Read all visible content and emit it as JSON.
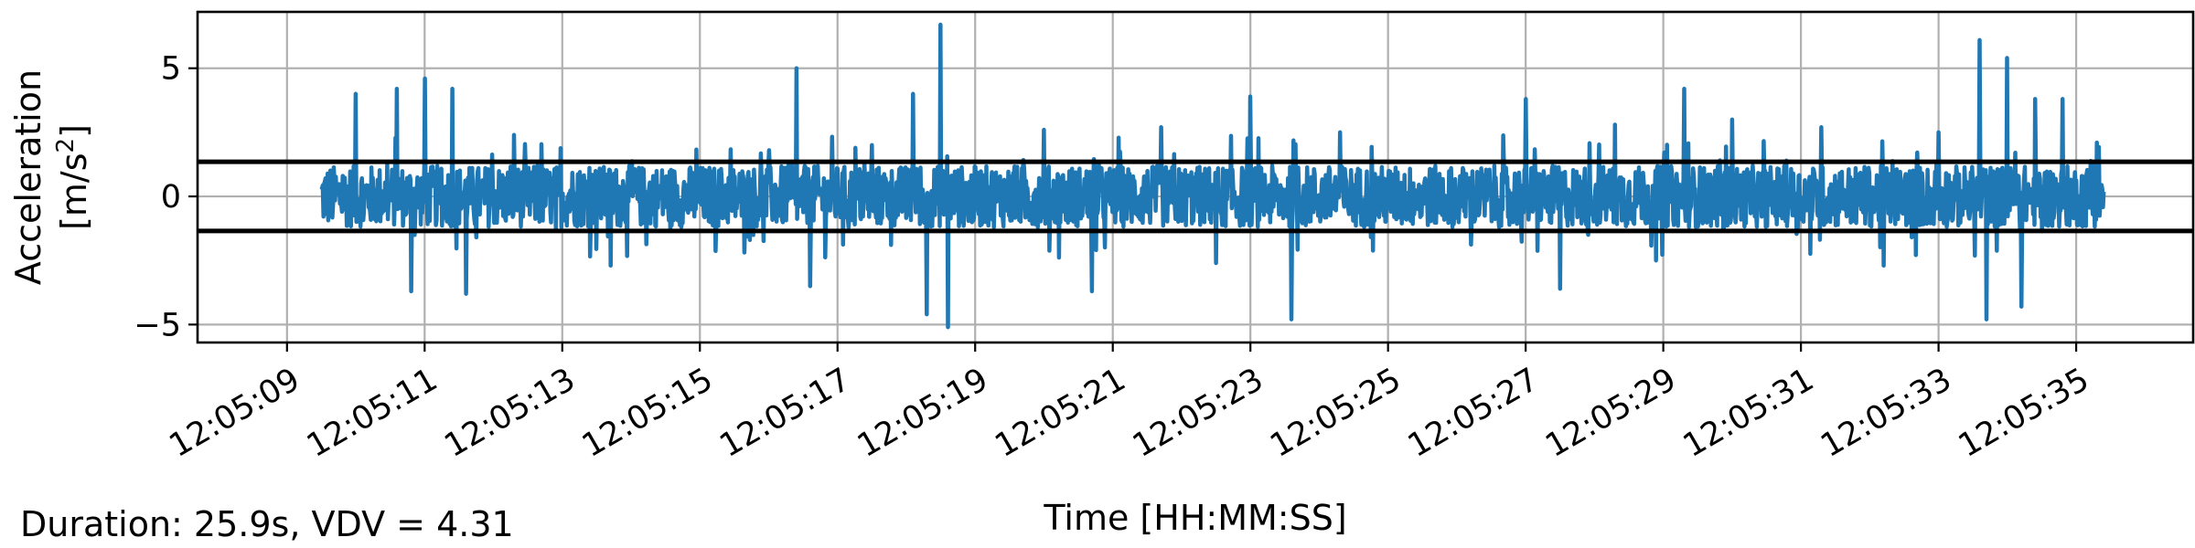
{
  "chart_data": {
    "type": "line",
    "xlabel": "Time [HH:MM:SS]",
    "ylabel_line1": "Acceleration",
    "ylabel_line2_prefix": "[m/s",
    "ylabel_line2_exp": "2",
    "ylabel_line2_suffix": "]",
    "x_ticks": [
      "12:05:09",
      "12:05:11",
      "12:05:13",
      "12:05:15",
      "12:05:17",
      "12:05:19",
      "12:05:21",
      "12:05:23",
      "12:05:25",
      "12:05:27",
      "12:05:29",
      "12:05:31",
      "12:05:33",
      "12:05:35"
    ],
    "x_tick_seconds": [
      9,
      11,
      13,
      15,
      17,
      19,
      21,
      23,
      25,
      27,
      29,
      31,
      33,
      35
    ],
    "xlim_seconds": [
      7.7,
      36.7
    ],
    "y_ticks": [
      {
        "value": 5,
        "label": "5"
      },
      {
        "value": 0,
        "label": "0"
      },
      {
        "value": -5,
        "label": "−5"
      }
    ],
    "ylim": [
      -5.7,
      7.2
    ],
    "grid": true,
    "signal_start_seconds": 9.5,
    "signal_end_seconds": 35.4,
    "threshold_upper": 1.35,
    "threshold_lower": -1.35,
    "series_color": "#1f77b4",
    "threshold_color": "#000000",
    "peaks": [
      {
        "x": 10.0,
        "y": 4.0
      },
      {
        "x": 10.6,
        "y": 4.2
      },
      {
        "x": 10.8,
        "y": -3.7
      },
      {
        "x": 11.0,
        "y": 4.6
      },
      {
        "x": 11.4,
        "y": 4.2
      },
      {
        "x": 11.6,
        "y": -3.8
      },
      {
        "x": 12.3,
        "y": 2.4
      },
      {
        "x": 13.7,
        "y": -2.7
      },
      {
        "x": 16.0,
        "y": 1.8
      },
      {
        "x": 16.4,
        "y": 5.0
      },
      {
        "x": 16.6,
        "y": -3.5
      },
      {
        "x": 17.5,
        "y": 2.0
      },
      {
        "x": 18.1,
        "y": 4.0
      },
      {
        "x": 18.3,
        "y": -4.6
      },
      {
        "x": 18.5,
        "y": 6.7
      },
      {
        "x": 18.6,
        "y": -5.1
      },
      {
        "x": 20.0,
        "y": 2.6
      },
      {
        "x": 20.7,
        "y": -3.7
      },
      {
        "x": 21.7,
        "y": 2.7
      },
      {
        "x": 22.5,
        "y": -2.6
      },
      {
        "x": 23.0,
        "y": 3.9
      },
      {
        "x": 23.6,
        "y": -4.8
      },
      {
        "x": 24.3,
        "y": 2.5
      },
      {
        "x": 27.0,
        "y": 3.8
      },
      {
        "x": 27.5,
        "y": -3.6
      },
      {
        "x": 28.3,
        "y": 2.8
      },
      {
        "x": 28.9,
        "y": -2.5
      },
      {
        "x": 29.3,
        "y": 4.2
      },
      {
        "x": 30.0,
        "y": 3.0
      },
      {
        "x": 31.3,
        "y": 2.7
      },
      {
        "x": 32.2,
        "y": -2.7
      },
      {
        "x": 33.0,
        "y": 2.5
      },
      {
        "x": 33.6,
        "y": 6.1
      },
      {
        "x": 33.7,
        "y": -4.8
      },
      {
        "x": 34.0,
        "y": 5.4
      },
      {
        "x": 34.2,
        "y": -4.3
      },
      {
        "x": 34.4,
        "y": 3.8
      },
      {
        "x": 34.8,
        "y": 3.8
      },
      {
        "x": 35.3,
        "y": 2.1
      }
    ]
  },
  "footer": {
    "summary": "Duration: 25.9s, VDV = 4.31"
  }
}
